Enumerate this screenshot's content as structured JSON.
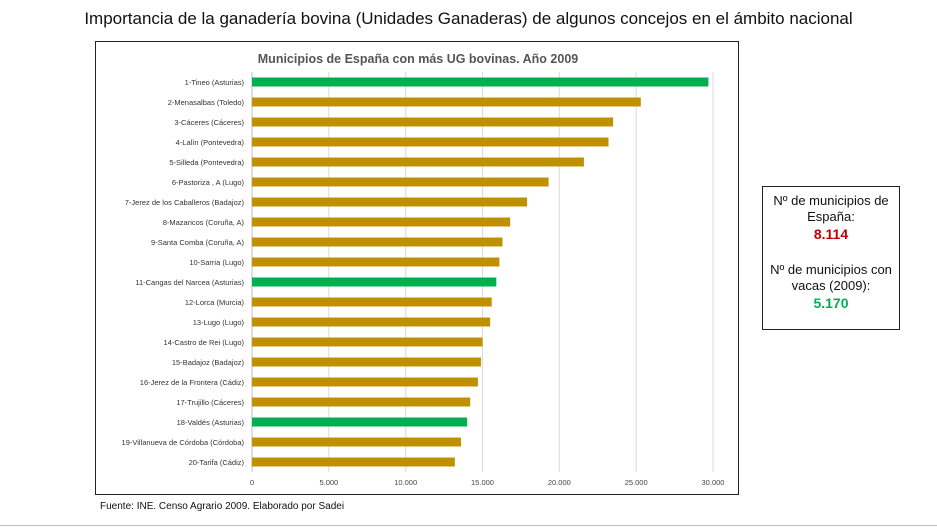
{
  "page": {
    "title": "Importancia de la ganadería bovina (Unidades Ganaderas) de algunos concejos en el ámbito nacional",
    "source": "Fuente: INE. Censo Agrario 2009. Elaborado por Sadei"
  },
  "info_box": {
    "label1": "Nº de municipios de España:",
    "value1": "8.114",
    "value1_color": "#c00000",
    "label2": "Nº de municipios con vacas (2009):",
    "value2": "5.170",
    "value2_color": "#00b050"
  },
  "chart_data": {
    "type": "bar",
    "orientation": "horizontal",
    "title": "Municipios de España con más UG bovinas. Año 2009",
    "xlabel": "",
    "ylabel": "",
    "xlim": [
      0,
      30000
    ],
    "x_ticks": [
      0,
      5000,
      10000,
      15000,
      20000,
      25000,
      30000
    ],
    "x_tick_labels": [
      "0",
      "5.000",
      "10.000",
      "15.000",
      "20.000",
      "25.000",
      "30.000"
    ],
    "grid": "vertical",
    "colors": {
      "default": "#bf9000",
      "highlight": "#00b050"
    },
    "categories": [
      "1-Tineo (Asturias)",
      "2-Menasalbas (Toledo)",
      "3-Cáceres (Cáceres)",
      "4-Lalín (Pontevedra)",
      "5-Silleda (Pontevedra)",
      "6-Pastoriza , A (Lugo)",
      "7-Jerez de los Caballeros (Badajoz)",
      "8-Mazaricos (Coruña, A)",
      "9-Santa Comba (Coruña, A)",
      "10-Sarria (Lugo)",
      "11-Cangas del Narcea (Asturias)",
      "12-Lorca (Murcia)",
      "13-Lugo (Lugo)",
      "14-Castro de Rei (Lugo)",
      "15-Badajoz (Badajoz)",
      "16-Jerez de la Frontera (Cádiz)",
      "17-Trujillo (Cáceres)",
      "18-Valdés (Asturias)",
      "19-Villanueva de Córdoba (Córdoba)",
      "20-Tarifa (Cádiz)"
    ],
    "values": [
      29700,
      25300,
      23500,
      23200,
      21600,
      19300,
      17900,
      16800,
      16300,
      16100,
      15900,
      15600,
      15500,
      15000,
      14900,
      14700,
      14200,
      14000,
      13600,
      13200
    ],
    "highlighted": [
      true,
      false,
      false,
      false,
      false,
      false,
      false,
      false,
      false,
      false,
      true,
      false,
      false,
      false,
      false,
      false,
      false,
      true,
      false,
      false
    ]
  }
}
